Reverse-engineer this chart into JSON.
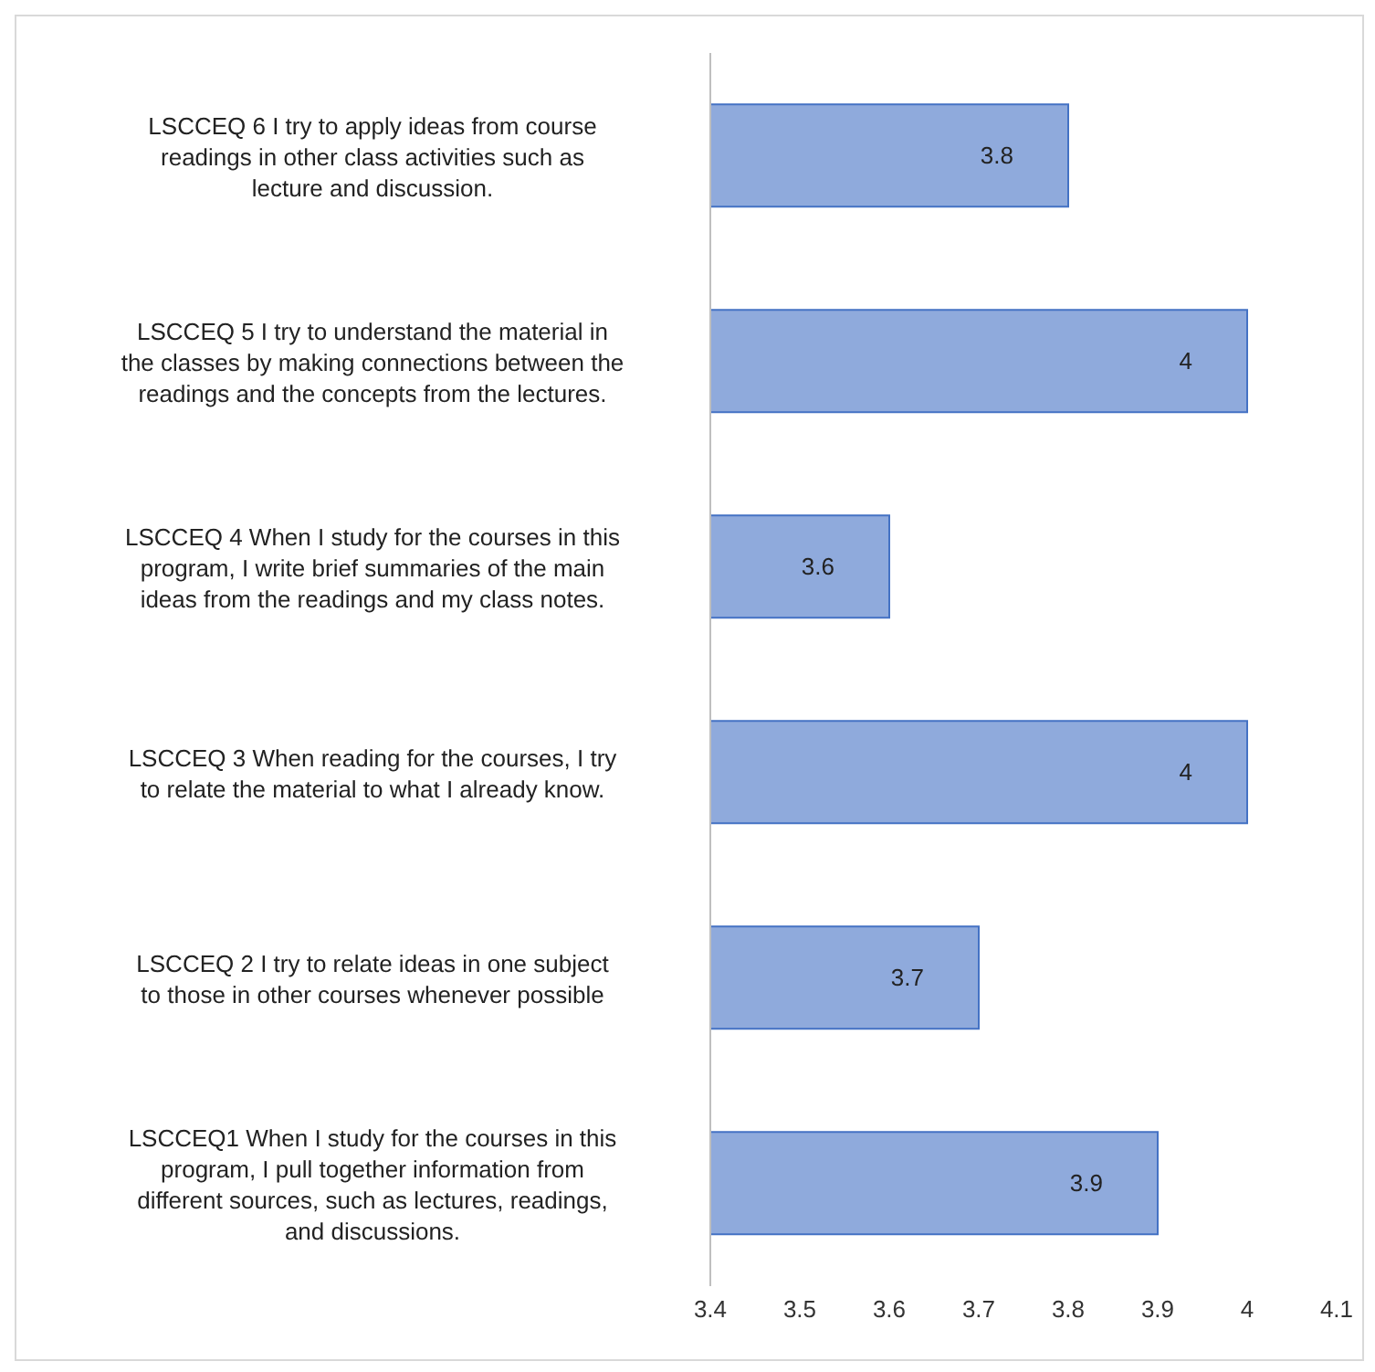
{
  "chart_data": {
    "type": "bar",
    "orientation": "horizontal",
    "categories": [
      "LSCCEQ 6 I try to apply ideas from course readings in other class activities such as lecture and discussion.",
      "LSCCEQ 5 I try to understand the material in the classes by making connections between the readings and the concepts from the lectures.",
      "LSCCEQ 4 When I study for the courses in this program, I write brief summaries of the main ideas from the readings and my class notes.",
      "LSCCEQ 3 When reading for the courses, I try to relate the material to what I already know.",
      "LSCCEQ 2 I try to relate ideas in one subject to those in other courses whenever possible",
      "LSCCEQ1 When I study for the courses in this program, I pull together information from different sources, such as lectures, readings, and discussions."
    ],
    "values": [
      3.8,
      4,
      3.6,
      4,
      3.7,
      3.9
    ],
    "color": "#8faadc",
    "xlim": [
      3.4,
      4.1
    ],
    "xticks": [
      3.4,
      3.5,
      3.6,
      3.7,
      3.8,
      3.9,
      4,
      4.1
    ],
    "grid": false,
    "data_labels": true
  }
}
